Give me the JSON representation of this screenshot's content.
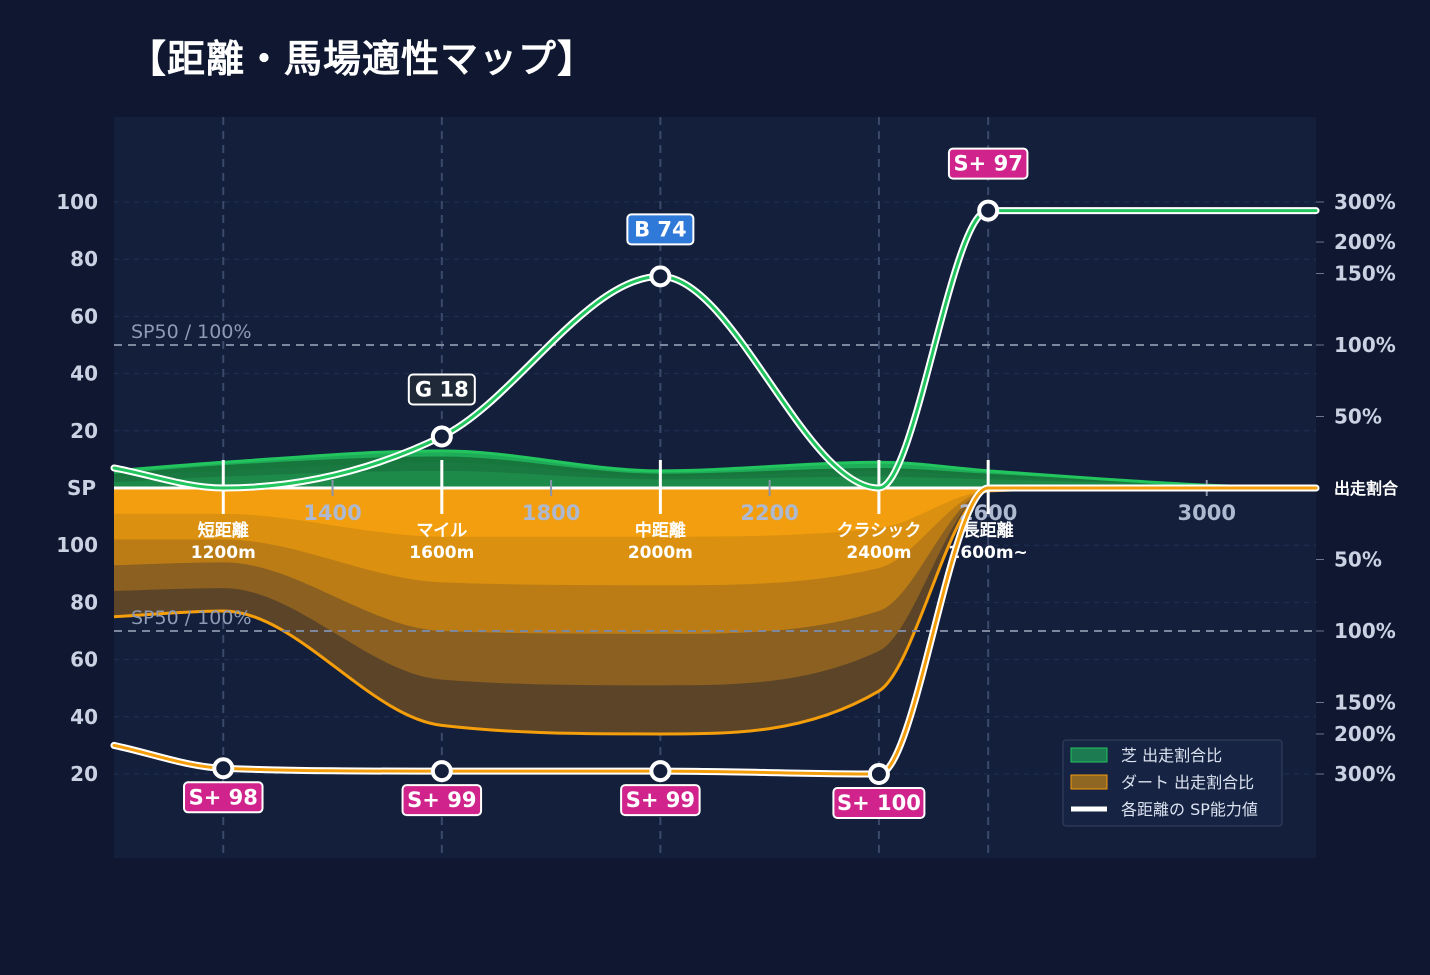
{
  "title": "【距離・馬場適性マップ】",
  "chart_data": {
    "type": "area",
    "x_ticks": [
      "1400",
      "1800",
      "2200",
      "2600",
      "3000"
    ],
    "x_tick_values": [
      1400,
      1800,
      2200,
      2600,
      3000
    ],
    "x_range": [
      1000,
      3200
    ],
    "categories": [
      {
        "name": "短距離",
        "distance": "1200m",
        "x": 1200
      },
      {
        "name": "マイル",
        "distance": "1600m",
        "x": 1600
      },
      {
        "name": "中距離",
        "distance": "2000m",
        "x": 2000
      },
      {
        "name": "クラシック",
        "distance": "2400m",
        "x": 2400
      },
      {
        "name": "長距離",
        "distance": "2600m~",
        "x": 2600
      }
    ],
    "sp_axis": {
      "center_label": "SP",
      "ticks_top": [
        "100",
        "80",
        "60",
        "40",
        "20"
      ],
      "ticks_bottom": [
        "20",
        "40",
        "60",
        "80",
        "100"
      ],
      "tick_values": [
        100,
        80,
        60,
        40,
        20
      ],
      "range": [
        0,
        100
      ]
    },
    "ratio_axis": {
      "center_label": "出走割合",
      "top": [
        {
          "label": "300%",
          "sp": 100
        },
        {
          "label": "200%",
          "sp": 86
        },
        {
          "label": "150%",
          "sp": 75
        },
        {
          "label": "100%",
          "sp": 50
        },
        {
          "label": "50%",
          "sp": 25
        }
      ],
      "bottom": [
        {
          "label": "50%",
          "sp": 25
        },
        {
          "label": "100%",
          "sp": 50
        },
        {
          "label": "150%",
          "sp": 75
        },
        {
          "label": "200%",
          "sp": 86
        },
        {
          "label": "300%",
          "sp": 100
        }
      ]
    },
    "reference_line": {
      "label": "SP50 / 100%",
      "sp": 50
    },
    "turf": {
      "name": "芝 出走割合比",
      "color": "#22c55e",
      "x": [
        1000,
        1200,
        1600,
        2000,
        2400,
        2600,
        3000,
        3200
      ],
      "layers": [
        [
          2,
          4,
          6,
          3,
          4,
          3,
          1,
          0
        ],
        [
          4,
          6,
          9,
          4,
          6,
          4,
          1,
          0
        ],
        [
          5,
          8,
          11,
          5,
          7,
          5,
          1,
          0
        ],
        [
          6,
          9,
          13,
          6,
          9,
          6,
          1,
          0
        ]
      ]
    },
    "dirt": {
      "name": "ダート 出走割合比",
      "color": "#f59e0b",
      "x": [
        1000,
        1200,
        1600,
        2000,
        2400,
        2600,
        3000,
        3200
      ],
      "layers": [
        [
          9,
          9,
          17,
          17,
          14,
          1,
          0,
          0
        ],
        [
          18,
          18,
          33,
          34,
          28,
          1,
          0,
          0
        ],
        [
          27,
          26,
          50,
          51,
          43,
          1,
          0,
          0
        ],
        [
          36,
          35,
          67,
          69,
          57,
          1,
          0,
          0
        ],
        [
          45,
          43,
          83,
          86,
          71,
          1,
          0,
          0
        ]
      ]
    },
    "sp_turf": {
      "name": "各距離の SP能力値",
      "color": "#22c55e",
      "x": [
        1000,
        1200,
        1600,
        2000,
        2400,
        2600,
        3000,
        3200
      ],
      "values": [
        7,
        0,
        18,
        74,
        0,
        97,
        97,
        97
      ]
    },
    "sp_dirt": {
      "color": "#f59e0b",
      "x": [
        1000,
        1200,
        1600,
        2000,
        2400,
        2600,
        3000,
        3200
      ],
      "values": [
        90,
        98,
        99,
        99,
        100,
        0,
        0,
        0
      ]
    },
    "badges_turf": [
      {
        "x": 1600,
        "sp": 18,
        "text": "G 18",
        "color": "#1f2937"
      },
      {
        "x": 2000,
        "sp": 74,
        "text": "B 74",
        "color": "#2f7ad9"
      },
      {
        "x": 2600,
        "sp": 97,
        "text": "S+ 97",
        "color": "#d0248c"
      }
    ],
    "badges_dirt": [
      {
        "x": 1200,
        "sp": 98,
        "text": "S+ 98",
        "color": "#d0248c"
      },
      {
        "x": 1600,
        "sp": 99,
        "text": "S+ 99",
        "color": "#d0248c"
      },
      {
        "x": 2000,
        "sp": 99,
        "text": "S+ 99",
        "color": "#d0248c"
      },
      {
        "x": 2400,
        "sp": 100,
        "text": "S+ 100",
        "color": "#d0248c"
      }
    ],
    "legend": [
      {
        "label": "芝 出走割合比",
        "color": "#22c55e",
        "kind": "area"
      },
      {
        "label": "ダート 出走割合比",
        "color": "#f59e0b",
        "kind": "area"
      },
      {
        "label": "各距離の SP能力値",
        "color": "#ffffff",
        "kind": "line"
      }
    ],
    "legend_position": "bottom-right",
    "grid": true
  }
}
